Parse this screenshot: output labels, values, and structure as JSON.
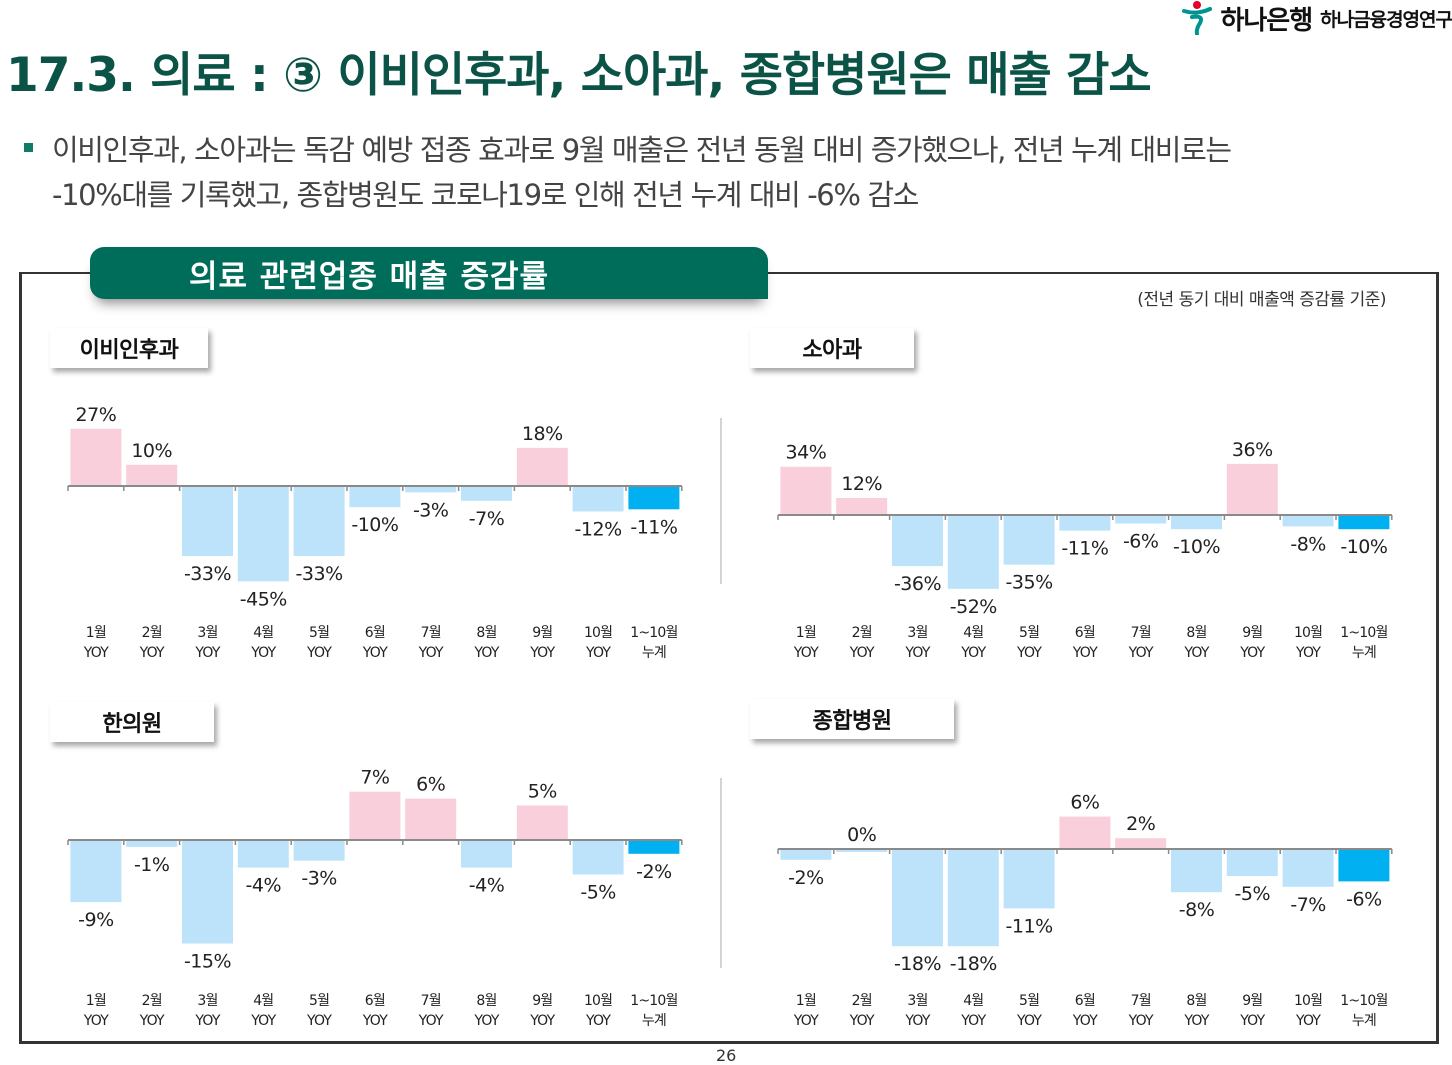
{
  "header": {
    "logo_bank": "하나은행",
    "logo_institute": "하나금융경영연구",
    "title": "17.3. 의료 : ③ 이비인후과, 소아과, 종합병원은 매출 감소",
    "bullet_line1": "이비인후과, 소아과는 독감 예방 접종 효과로 9월 매출은 전년 동월 대비 증가했으나, 전년 누계 대비로는",
    "bullet_line2": "-10%대를 기록했고, 종합병원도 코로나19로 인해 전년 누계 대비 -6% 감소"
  },
  "figure": {
    "banner": "의료 관련업종 매출 증감률",
    "note": "(전년 동기 대비 매출액 증감률 기준)"
  },
  "colors": {
    "positive": "#f9cfdc",
    "negative": "#bde3fb",
    "cumulative": "#00b0f0",
    "title_green": "#0b5346",
    "banner_green": "#006d5b"
  },
  "page_number": "26",
  "chart_data": [
    {
      "type": "bar",
      "title": "이비인후과",
      "categories": [
        "1월|YOY",
        "2월|YOY",
        "3월|YOY",
        "4월|YOY",
        "5월|YOY",
        "6월|YOY",
        "7월|YOY",
        "8월|YOY",
        "9월|YOY",
        "10월|YOY",
        "1~10월|누계"
      ],
      "values": [
        27,
        10,
        -33,
        -45,
        -33,
        -10,
        -3,
        -7,
        18,
        -12,
        -11
      ],
      "labels": [
        "27%",
        "10%",
        "-33%",
        "-45%",
        "-33%",
        "-10%",
        "-3%",
        "-7%",
        "18%",
        "-12%",
        "-11%"
      ],
      "unit": "%",
      "ylim": [
        -50,
        40
      ]
    },
    {
      "type": "bar",
      "title": "소아과",
      "categories": [
        "1월|YOY",
        "2월|YOY",
        "3월|YOY",
        "4월|YOY",
        "5월|YOY",
        "6월|YOY",
        "7월|YOY",
        "8월|YOY",
        "9월|YOY",
        "10월|YOY",
        "1~10월|누계"
      ],
      "values": [
        34,
        12,
        -36,
        -52,
        -35,
        -11,
        -6,
        -10,
        36,
        -8,
        -10
      ],
      "labels": [
        "34%",
        "12%",
        "-36%",
        "-52%",
        "-35%",
        "-11%",
        "-6%",
        "-10%",
        "36%",
        "-8%",
        "-10%"
      ],
      "unit": "%",
      "ylim": [
        -60,
        50
      ]
    },
    {
      "type": "bar",
      "title": "한의원",
      "categories": [
        "1월|YOY",
        "2월|YOY",
        "3월|YOY",
        "4월|YOY",
        "5월|YOY",
        "6월|YOY",
        "7월|YOY",
        "8월|YOY",
        "9월|YOY",
        "10월|YOY",
        "1~10월|누계"
      ],
      "values": [
        -9,
        -1,
        -15,
        -4,
        -3,
        7,
        6,
        -4,
        5,
        -5,
        -2
      ],
      "labels": [
        "-9%",
        "-1%",
        "-15%",
        "-4%",
        "-3%",
        "7%",
        "6%",
        "-4%",
        "5%",
        "-5%",
        "-2%"
      ],
      "unit": "%",
      "ylim": [
        -20,
        12
      ]
    },
    {
      "type": "bar",
      "title": "종합병원",
      "categories": [
        "1월|YOY",
        "2월|YOY",
        "3월|YOY",
        "4월|YOY",
        "5월|YOY",
        "6월|YOY",
        "7월|YOY",
        "8월|YOY",
        "9월|YOY",
        "10월|YOY",
        "1~10월|누계"
      ],
      "values": [
        -2,
        0,
        -18,
        -18,
        -11,
        6,
        2,
        -8,
        -5,
        -7,
        -6
      ],
      "labels": [
        "-2%",
        "0%",
        "-18%",
        "-18%",
        "-11%",
        "6%",
        "2%",
        "-8%",
        "-5%",
        "-7%",
        "-6%"
      ],
      "unit": "%",
      "ylim": [
        -22,
        10
      ]
    }
  ]
}
